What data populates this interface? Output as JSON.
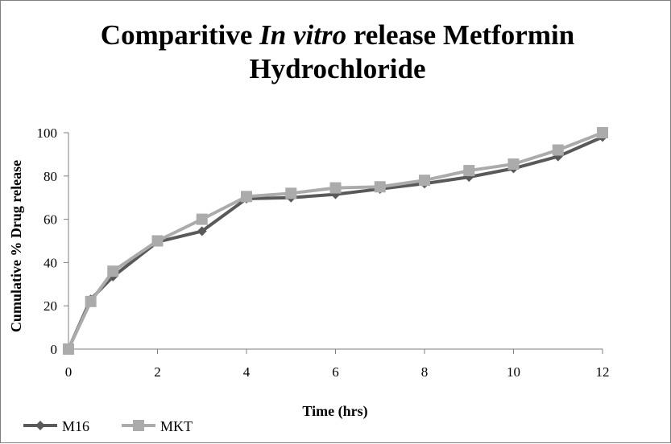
{
  "chart_data": {
    "type": "line",
    "title": {
      "part1": "Comparitive ",
      "italic": "In vitro",
      "part2": " release Metformin",
      "line2": "Hydrochloride"
    },
    "xlabel": "Time (hrs)",
    "ylabel": "Cumulative % Drug release",
    "xlim": [
      0,
      12
    ],
    "ylim": [
      0,
      100
    ],
    "xticks": [
      0,
      2,
      4,
      6,
      8,
      10,
      12
    ],
    "yticks": [
      0,
      20,
      40,
      60,
      80,
      100
    ],
    "grid": false,
    "legend_position": "bottom-left",
    "series": [
      {
        "name": "M16",
        "color": "#595959",
        "marker": "diamond",
        "x": [
          0,
          0.5,
          1,
          2,
          3,
          4,
          5,
          6,
          7,
          8,
          9,
          10,
          11,
          12
        ],
        "y": [
          0,
          23,
          33.5,
          49.5,
          54.5,
          69.5,
          70,
          71.5,
          74,
          76.5,
          79.5,
          83.5,
          89,
          98
        ]
      },
      {
        "name": "MKT",
        "color": "#ababab",
        "marker": "square",
        "x": [
          0,
          0.5,
          1,
          2,
          3,
          4,
          5,
          6,
          7,
          8,
          9,
          10,
          11,
          12
        ],
        "y": [
          0,
          22,
          36,
          50,
          60,
          70.5,
          72,
          74.5,
          75,
          78,
          82.5,
          85.5,
          92,
          100
        ]
      }
    ]
  }
}
